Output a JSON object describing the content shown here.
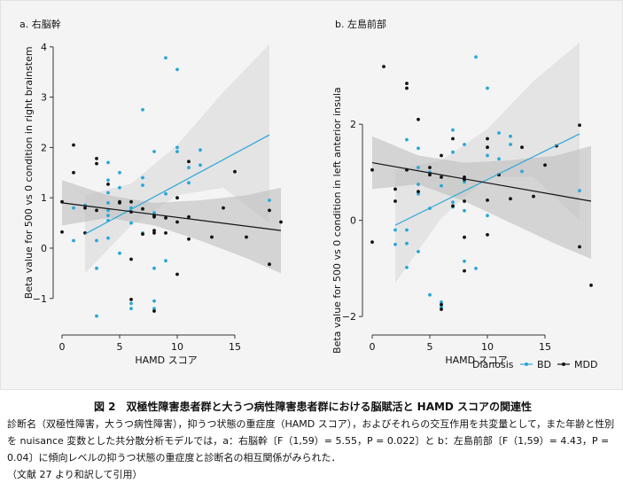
{
  "figure": {
    "caption_title": "図 2　双極性障害患者群と大うつ病性障害患者群における脳賦活と HAMD スコアの関連性",
    "caption_body": "診断名（双極性障害，大うつ病性障害），抑うつ状態の重症度（HAMD スコア），およびそれらの交互作用を共変量として，また年齢と性別を nuisance 変数とした共分散分析モデルでは，a：右脳幹〔F（1,59）= 5.55，P = 0.022〕と b：左島前部〔F（1,59）= 4.43，P = 0.04〕に傾向レベルの抑うつ状態の重症度と診断名の相互関係がみられた．",
    "caption_source": "（文献 27 より和訳して引用）",
    "legend_title": "Dianosis",
    "legend_items": [
      "BD",
      "MDD"
    ]
  },
  "colors": {
    "BD": "#2aa6d8",
    "MDD": "#111111",
    "ci_band": "#b9b9b9"
  },
  "chart_data": [
    {
      "type": "scatter",
      "title": "a. 右脳幹",
      "xlabel": "HAMD スコア",
      "ylabel": "Beta value for 500 vs 0 condition in right brainstem",
      "xlim": [
        -1,
        19.5
      ],
      "ylim": [
        -1.55,
        4.05
      ],
      "xticks": [
        0,
        5,
        10,
        15
      ],
      "yticks": [
        -1,
        0,
        1,
        2,
        3,
        4
      ],
      "grid": false,
      "legend": "bottom-right",
      "series": [
        {
          "name": "BD",
          "fit": [
            [
              2,
              0.28
            ],
            [
              18,
              2.25
            ]
          ],
          "ci_upper": [
            [
              2,
              1.05
            ],
            [
              6,
              1.28
            ],
            [
              10,
              2.05
            ],
            [
              14,
              3.1
            ],
            [
              18,
              4.05
            ]
          ],
          "ci_lower": [
            [
              2,
              -0.5
            ],
            [
              6,
              0.45
            ],
            [
              10,
              1.05
            ],
            [
              14,
              1.2
            ],
            [
              18,
              0.5
            ]
          ],
          "x": [
            1,
            1,
            2,
            3,
            3,
            3,
            4,
            4,
            4,
            4,
            4,
            4,
            4,
            4,
            5,
            5,
            5,
            6,
            6,
            6,
            6,
            7,
            7,
            7,
            7,
            8,
            8,
            8,
            8,
            8,
            9,
            9,
            9,
            10,
            10,
            10,
            11,
            11,
            12,
            12,
            18
          ],
          "y": [
            0.8,
            0.15,
            0.85,
            -0.4,
            -1.35,
            0.15,
            1.7,
            1.35,
            1.1,
            0.9,
            0.75,
            0.65,
            0.55,
            0.2,
            1.5,
            1.2,
            -0.1,
            -1.1,
            -1.2,
            0.5,
            0.8,
            2.75,
            1.4,
            1.25,
            0.3,
            1.92,
            0.7,
            -0.4,
            -1.05,
            -1.2,
            3.78,
            1.08,
            -0.25,
            3.55,
            2.0,
            1.92,
            1.6,
            1.3,
            1.95,
            1.65,
            0.95
          ]
        },
        {
          "name": "MDD",
          "fit": [
            [
              0,
              0.9
            ],
            [
              19,
              0.35
            ]
          ],
          "ci_upper": [
            [
              0,
              1.35
            ],
            [
              4,
              1.05
            ],
            [
              8,
              0.9
            ],
            [
              12,
              0.95
            ],
            [
              16,
              1.05
            ],
            [
              19,
              1.2
            ]
          ],
          "ci_lower": [
            [
              0,
              0.45
            ],
            [
              4,
              0.6
            ],
            [
              8,
              0.45
            ],
            [
              12,
              0.15
            ],
            [
              16,
              -0.2
            ],
            [
              19,
              -0.5
            ]
          ],
          "x": [
            0,
            0,
            1,
            1,
            2,
            2,
            3,
            3,
            3,
            4,
            5,
            5,
            6,
            6,
            6,
            6,
            7,
            7,
            8,
            8,
            8,
            8,
            8,
            9,
            9,
            10,
            10,
            10,
            11,
            11,
            11,
            13,
            14,
            15,
            16,
            18,
            18,
            19
          ],
          "y": [
            0.92,
            0.32,
            1.5,
            2.05,
            0.3,
            0.8,
            1.78,
            1.68,
            0.75,
            1.27,
            0.9,
            0.92,
            -0.22,
            -1.02,
            0.92,
            0.72,
            0.28,
            0.78,
            0.35,
            0.62,
            0.65,
            -1.25,
            0.3,
            0.6,
            0.3,
            0.52,
            1.0,
            -0.52,
            1.72,
            0.62,
            0.18,
            0.22,
            0.8,
            1.52,
            0.22,
            0.75,
            -0.32,
            0.52
          ]
        }
      ]
    },
    {
      "type": "scatter",
      "title": "b. 左島前部",
      "xlabel": "HAMD スコア",
      "ylabel": "Beta value for 500 vs 0 condition in left anterior insula",
      "xlim": [
        -1,
        19.5
      ],
      "ylim": [
        -2.2,
        3.7
      ],
      "xticks": [
        0,
        5,
        10,
        15
      ],
      "yticks": [
        -2,
        0,
        2
      ],
      "grid": false,
      "legend": "bottom-right",
      "series": [
        {
          "name": "BD",
          "fit": [
            [
              2,
              -0.1
            ],
            [
              18,
              1.8
            ]
          ],
          "ci_upper": [
            [
              2,
              1.05
            ],
            [
              6,
              1.25
            ],
            [
              10,
              1.9
            ],
            [
              14,
              2.9
            ],
            [
              18,
              3.7
            ]
          ],
          "ci_lower": [
            [
              2,
              -1.3
            ],
            [
              6,
              0.05
            ],
            [
              10,
              0.9
            ],
            [
              14,
              0.9
            ],
            [
              18,
              0.0
            ]
          ],
          "x": [
            2,
            2,
            3,
            3,
            3,
            3,
            4,
            4,
            4,
            4,
            4,
            5,
            5,
            5,
            6,
            6,
            6,
            7,
            7,
            7,
            7,
            8,
            8,
            8,
            8,
            9,
            9,
            10,
            10,
            10,
            11,
            11,
            12,
            12,
            13,
            18
          ],
          "y": [
            -0.5,
            -0.2,
            1.68,
            -0.2,
            -0.48,
            -0.98,
            0.55,
            1.5,
            1.1,
            0.75,
            -0.65,
            1.0,
            0.25,
            -1.55,
            -1.8,
            -1.7,
            0.72,
            1.88,
            1.42,
            0.38,
            0.28,
            1.58,
            0.2,
            -0.85,
            0.8,
            3.4,
            -1.0,
            2.75,
            1.35,
            0.1,
            1.82,
            1.28,
            1.75,
            1.58,
            1.02,
            0.62
          ]
        },
        {
          "name": "MDD",
          "fit": [
            [
              0,
              1.2
            ],
            [
              19,
              0.4
            ]
          ],
          "ci_upper": [
            [
              0,
              1.75
            ],
            [
              4,
              1.35
            ],
            [
              8,
              1.2
            ],
            [
              12,
              1.25
            ],
            [
              16,
              1.35
            ],
            [
              19,
              1.55
            ]
          ],
          "ci_lower": [
            [
              0,
              0.65
            ],
            [
              4,
              0.75
            ],
            [
              8,
              0.4
            ],
            [
              12,
              -0.05
            ],
            [
              16,
              -0.5
            ],
            [
              19,
              -0.8
            ]
          ],
          "x": [
            0,
            0,
            1,
            2,
            2,
            3,
            3,
            3,
            4,
            4,
            5,
            5,
            6,
            6,
            6,
            6,
            7,
            7,
            8,
            8,
            8,
            8,
            8,
            10,
            10,
            10,
            10,
            11,
            12,
            13,
            14,
            15,
            16,
            18,
            18,
            19
          ],
          "y": [
            1.05,
            -0.45,
            3.2,
            0.65,
            0.4,
            2.85,
            2.75,
            1.05,
            2.1,
            0.6,
            0.95,
            1.1,
            -1.75,
            -1.85,
            1.35,
            0.9,
            1.7,
            0.3,
            0.9,
            0.85,
            -1.05,
            0.4,
            -0.35,
            1.7,
            1.52,
            0.42,
            -0.3,
            0.95,
            0.45,
            1.52,
            0.5,
            1.15,
            1.55,
            1.98,
            -0.55,
            -1.35
          ]
        }
      ]
    }
  ]
}
